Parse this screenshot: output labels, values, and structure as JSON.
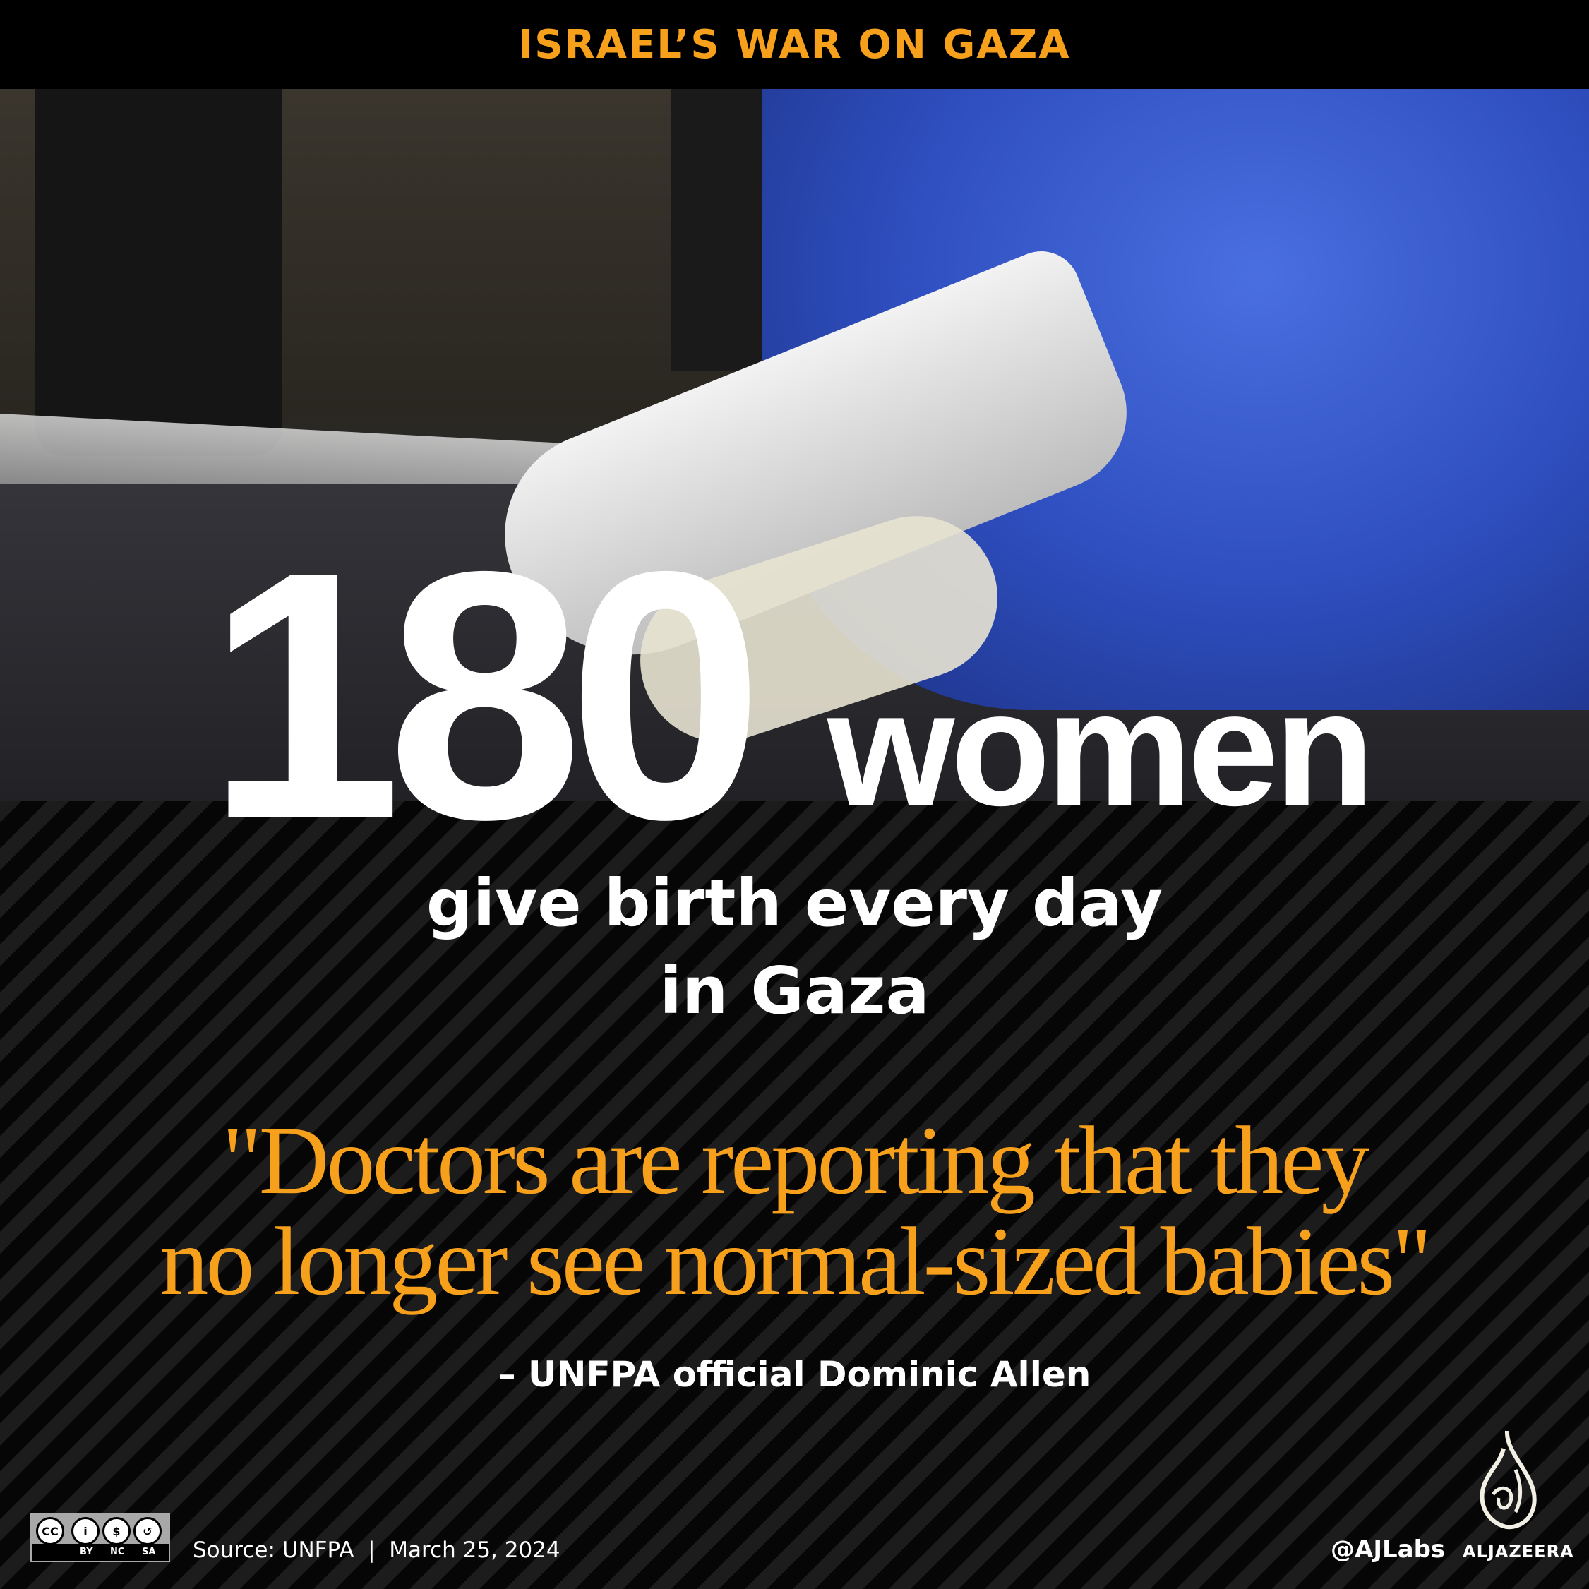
{
  "header": {
    "title": "ISRAEL’S WAR ON GAZA"
  },
  "headline": {
    "number": "180",
    "unit": "women"
  },
  "subtitle": {
    "line1": "give birth every day",
    "line2": "in Gaza"
  },
  "quote": {
    "line1": "\"Doctors are reporting that they",
    "line2": "no longer see normal-sized babies\""
  },
  "attribution": "– UNFPA official Dominic Allen",
  "footer": {
    "license": {
      "cc": "CC",
      "labels": [
        "BY",
        "NC",
        "SA"
      ]
    },
    "source": "Source: UNFPA  |  March 25, 2024",
    "handle": "@AJLabs",
    "brand": "ALJAZEERA"
  },
  "colors": {
    "accent": "#f7a01c",
    "background": "#000000",
    "text": "#ffffff"
  }
}
